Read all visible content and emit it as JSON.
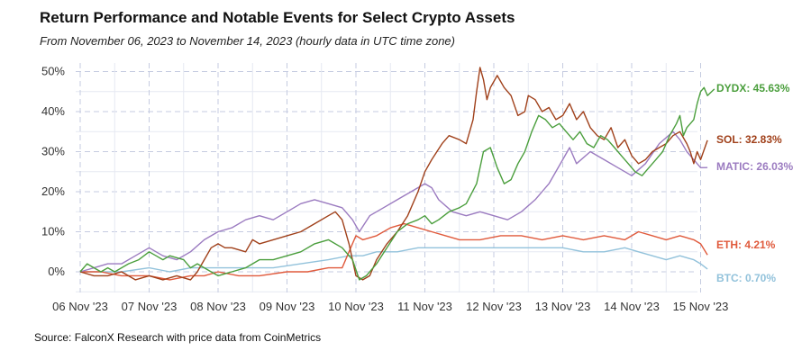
{
  "header": {
    "title": "Return Performance and Notable Events for Select Crypto Assets",
    "subtitle": "From November 06, 2023 to November 14, 2023 (hourly data in UTC time zone)"
  },
  "footer": {
    "source": "Source: FalconX Research with price data from CoinMetrics"
  },
  "chart_data": {
    "type": "line",
    "x_ticks": [
      "06 Nov '23",
      "07 Nov '23",
      "08 Nov '23",
      "09 Nov '23",
      "10 Nov '23",
      "11 Nov '23",
      "12 Nov '23",
      "13 Nov '23",
      "14 Nov '23",
      "15 Nov '23"
    ],
    "y_ticks": [
      "0%",
      "10%",
      "20%",
      "30%",
      "40%",
      "50%"
    ],
    "xlim": [
      "2023-11-06",
      "2023-11-15"
    ],
    "ylim": [
      -5,
      53
    ],
    "grid": true,
    "x_unit": "date",
    "y_unit": "percent",
    "series": [
      {
        "name": "DYDX",
        "label": "DYDX: 45.63%",
        "color": "#4a9e3c",
        "points": [
          [
            0.0,
            0
          ],
          [
            0.1,
            2
          ],
          [
            0.2,
            1
          ],
          [
            0.3,
            0
          ],
          [
            0.4,
            1
          ],
          [
            0.5,
            0
          ],
          [
            0.7,
            2
          ],
          [
            0.85,
            3
          ],
          [
            1.0,
            5
          ],
          [
            1.1,
            4
          ],
          [
            1.2,
            3
          ],
          [
            1.3,
            4
          ],
          [
            1.5,
            3
          ],
          [
            1.6,
            1
          ],
          [
            1.7,
            2
          ],
          [
            1.8,
            1
          ],
          [
            1.9,
            0
          ],
          [
            2.0,
            -1
          ],
          [
            2.2,
            0
          ],
          [
            2.4,
            1
          ],
          [
            2.6,
            3
          ],
          [
            2.8,
            3
          ],
          [
            3.0,
            4
          ],
          [
            3.2,
            5
          ],
          [
            3.4,
            7
          ],
          [
            3.6,
            8
          ],
          [
            3.8,
            6
          ],
          [
            3.95,
            3
          ],
          [
            4.05,
            -2
          ],
          [
            4.15,
            -1
          ],
          [
            4.3,
            2
          ],
          [
            4.45,
            6
          ],
          [
            4.6,
            10
          ],
          [
            4.75,
            12
          ],
          [
            4.9,
            13
          ],
          [
            5.0,
            14
          ],
          [
            5.1,
            12
          ],
          [
            5.2,
            13
          ],
          [
            5.35,
            15
          ],
          [
            5.5,
            16
          ],
          [
            5.6,
            17
          ],
          [
            5.75,
            22
          ],
          [
            5.85,
            30
          ],
          [
            5.95,
            31
          ],
          [
            6.05,
            26
          ],
          [
            6.15,
            22
          ],
          [
            6.25,
            23
          ],
          [
            6.35,
            27
          ],
          [
            6.45,
            30
          ],
          [
            6.55,
            35
          ],
          [
            6.65,
            39
          ],
          [
            6.75,
            38
          ],
          [
            6.85,
            36
          ],
          [
            6.95,
            37
          ],
          [
            7.05,
            35
          ],
          [
            7.15,
            33
          ],
          [
            7.25,
            35
          ],
          [
            7.35,
            32
          ],
          [
            7.45,
            31
          ],
          [
            7.55,
            34
          ],
          [
            7.65,
            33
          ],
          [
            7.75,
            31
          ],
          [
            7.85,
            29
          ],
          [
            7.95,
            27
          ],
          [
            8.05,
            25
          ],
          [
            8.15,
            24
          ],
          [
            8.25,
            26
          ],
          [
            8.35,
            28
          ],
          [
            8.45,
            30
          ],
          [
            8.55,
            34
          ],
          [
            8.65,
            37
          ],
          [
            8.7,
            39
          ],
          [
            8.75,
            34
          ],
          [
            8.8,
            36
          ],
          [
            8.9,
            38
          ],
          [
            8.95,
            42
          ],
          [
            9.0,
            45
          ],
          [
            9.05,
            46
          ],
          [
            9.1,
            44
          ],
          [
            9.2,
            45.63
          ]
        ]
      },
      {
        "name": "SOL",
        "label": "SOL: 32.83%",
        "color": "#a0401a",
        "points": [
          [
            0.0,
            0
          ],
          [
            0.2,
            -1
          ],
          [
            0.4,
            -1
          ],
          [
            0.6,
            0
          ],
          [
            0.8,
            -2
          ],
          [
            1.0,
            -1
          ],
          [
            1.2,
            -2
          ],
          [
            1.4,
            -1
          ],
          [
            1.6,
            -2
          ],
          [
            1.7,
            0
          ],
          [
            1.8,
            3
          ],
          [
            1.9,
            6
          ],
          [
            2.0,
            7
          ],
          [
            2.1,
            6
          ],
          [
            2.2,
            6
          ],
          [
            2.4,
            5
          ],
          [
            2.5,
            8
          ],
          [
            2.6,
            7
          ],
          [
            2.8,
            8
          ],
          [
            3.0,
            9
          ],
          [
            3.2,
            10
          ],
          [
            3.4,
            12
          ],
          [
            3.6,
            14
          ],
          [
            3.7,
            15
          ],
          [
            3.8,
            13
          ],
          [
            3.9,
            7
          ],
          [
            4.0,
            -1
          ],
          [
            4.1,
            -2
          ],
          [
            4.2,
            -1
          ],
          [
            4.3,
            3
          ],
          [
            4.45,
            7
          ],
          [
            4.6,
            10
          ],
          [
            4.75,
            14
          ],
          [
            4.9,
            20
          ],
          [
            5.0,
            25
          ],
          [
            5.1,
            28
          ],
          [
            5.25,
            32
          ],
          [
            5.35,
            34
          ],
          [
            5.5,
            33
          ],
          [
            5.6,
            32
          ],
          [
            5.7,
            38
          ],
          [
            5.75,
            45
          ],
          [
            5.8,
            51
          ],
          [
            5.85,
            48
          ],
          [
            5.9,
            43
          ],
          [
            5.95,
            46
          ],
          [
            6.05,
            49
          ],
          [
            6.15,
            46
          ],
          [
            6.25,
            44
          ],
          [
            6.35,
            39
          ],
          [
            6.45,
            40
          ],
          [
            6.5,
            44
          ],
          [
            6.6,
            43
          ],
          [
            6.7,
            40
          ],
          [
            6.8,
            41
          ],
          [
            6.9,
            38
          ],
          [
            7.0,
            39
          ],
          [
            7.1,
            42
          ],
          [
            7.2,
            38
          ],
          [
            7.3,
            40
          ],
          [
            7.4,
            36
          ],
          [
            7.5,
            34
          ],
          [
            7.6,
            33
          ],
          [
            7.7,
            36
          ],
          [
            7.8,
            31
          ],
          [
            7.9,
            33
          ],
          [
            8.0,
            29
          ],
          [
            8.1,
            27
          ],
          [
            8.2,
            28
          ],
          [
            8.3,
            30
          ],
          [
            8.4,
            31
          ],
          [
            8.5,
            32
          ],
          [
            8.6,
            34
          ],
          [
            8.7,
            35
          ],
          [
            8.8,
            32
          ],
          [
            8.85,
            30
          ],
          [
            8.9,
            27
          ],
          [
            8.95,
            30
          ],
          [
            9.0,
            28
          ],
          [
            9.1,
            32.83
          ]
        ]
      },
      {
        "name": "MATIC",
        "label": "MATIC: 26.03%",
        "color": "#9b7bc0",
        "points": [
          [
            0.0,
            0
          ],
          [
            0.2,
            1
          ],
          [
            0.4,
            2
          ],
          [
            0.6,
            2
          ],
          [
            0.8,
            4
          ],
          [
            1.0,
            6
          ],
          [
            1.1,
            5
          ],
          [
            1.2,
            4
          ],
          [
            1.4,
            3
          ],
          [
            1.6,
            5
          ],
          [
            1.8,
            8
          ],
          [
            2.0,
            10
          ],
          [
            2.2,
            11
          ],
          [
            2.4,
            13
          ],
          [
            2.6,
            14
          ],
          [
            2.8,
            13
          ],
          [
            3.0,
            15
          ],
          [
            3.2,
            17
          ],
          [
            3.4,
            18
          ],
          [
            3.6,
            17
          ],
          [
            3.8,
            16
          ],
          [
            3.95,
            13
          ],
          [
            4.05,
            10
          ],
          [
            4.2,
            14
          ],
          [
            4.4,
            16
          ],
          [
            4.6,
            18
          ],
          [
            4.8,
            20
          ],
          [
            5.0,
            22
          ],
          [
            5.1,
            21
          ],
          [
            5.2,
            18
          ],
          [
            5.4,
            15
          ],
          [
            5.6,
            14
          ],
          [
            5.8,
            15
          ],
          [
            6.0,
            14
          ],
          [
            6.2,
            13
          ],
          [
            6.4,
            15
          ],
          [
            6.6,
            18
          ],
          [
            6.8,
            22
          ],
          [
            7.0,
            28
          ],
          [
            7.1,
            31
          ],
          [
            7.2,
            27
          ],
          [
            7.4,
            30
          ],
          [
            7.6,
            28
          ],
          [
            7.8,
            26
          ],
          [
            8.0,
            24
          ],
          [
            8.2,
            27
          ],
          [
            8.4,
            32
          ],
          [
            8.6,
            35
          ],
          [
            8.7,
            33
          ],
          [
            8.8,
            30
          ],
          [
            8.9,
            28
          ],
          [
            9.0,
            26
          ],
          [
            9.1,
            26.03
          ]
        ]
      },
      {
        "name": "ETH",
        "label": "ETH: 4.21%",
        "color": "#e05a3c",
        "points": [
          [
            0.0,
            0
          ],
          [
            0.3,
            0
          ],
          [
            0.6,
            -1
          ],
          [
            1.0,
            -1
          ],
          [
            1.3,
            -2
          ],
          [
            1.6,
            -1
          ],
          [
            1.8,
            -1
          ],
          [
            2.0,
            0
          ],
          [
            2.3,
            -1
          ],
          [
            2.6,
            -1
          ],
          [
            3.0,
            0
          ],
          [
            3.3,
            0
          ],
          [
            3.6,
            1
          ],
          [
            3.8,
            1
          ],
          [
            3.9,
            5
          ],
          [
            4.0,
            9
          ],
          [
            4.1,
            8
          ],
          [
            4.3,
            9
          ],
          [
            4.5,
            11
          ],
          [
            4.7,
            12
          ],
          [
            4.9,
            11
          ],
          [
            5.1,
            10
          ],
          [
            5.3,
            9
          ],
          [
            5.5,
            8
          ],
          [
            5.8,
            8
          ],
          [
            6.1,
            9
          ],
          [
            6.4,
            9
          ],
          [
            6.7,
            8
          ],
          [
            7.0,
            9
          ],
          [
            7.3,
            8
          ],
          [
            7.6,
            9
          ],
          [
            7.9,
            8
          ],
          [
            8.1,
            10
          ],
          [
            8.3,
            9
          ],
          [
            8.5,
            8
          ],
          [
            8.7,
            9
          ],
          [
            8.9,
            8
          ],
          [
            9.0,
            7
          ],
          [
            9.1,
            4.21
          ]
        ]
      },
      {
        "name": "BTC",
        "label": "BTC: 0.70%",
        "color": "#92c2db",
        "points": [
          [
            0.0,
            0
          ],
          [
            0.3,
            0
          ],
          [
            0.6,
            0
          ],
          [
            1.0,
            1
          ],
          [
            1.3,
            0
          ],
          [
            1.6,
            1
          ],
          [
            2.0,
            1
          ],
          [
            2.4,
            1
          ],
          [
            2.8,
            1
          ],
          [
            3.2,
            2
          ],
          [
            3.6,
            3
          ],
          [
            3.9,
            4
          ],
          [
            4.1,
            4
          ],
          [
            4.3,
            5
          ],
          [
            4.6,
            5
          ],
          [
            4.9,
            6
          ],
          [
            5.2,
            6
          ],
          [
            5.5,
            6
          ],
          [
            5.8,
            6
          ],
          [
            6.1,
            6
          ],
          [
            6.4,
            6
          ],
          [
            6.7,
            6
          ],
          [
            7.0,
            6
          ],
          [
            7.3,
            5
          ],
          [
            7.6,
            5
          ],
          [
            7.9,
            6
          ],
          [
            8.1,
            5
          ],
          [
            8.3,
            4
          ],
          [
            8.5,
            3
          ],
          [
            8.7,
            4
          ],
          [
            8.9,
            3
          ],
          [
            9.0,
            2
          ],
          [
            9.1,
            0.7
          ]
        ]
      }
    ]
  }
}
